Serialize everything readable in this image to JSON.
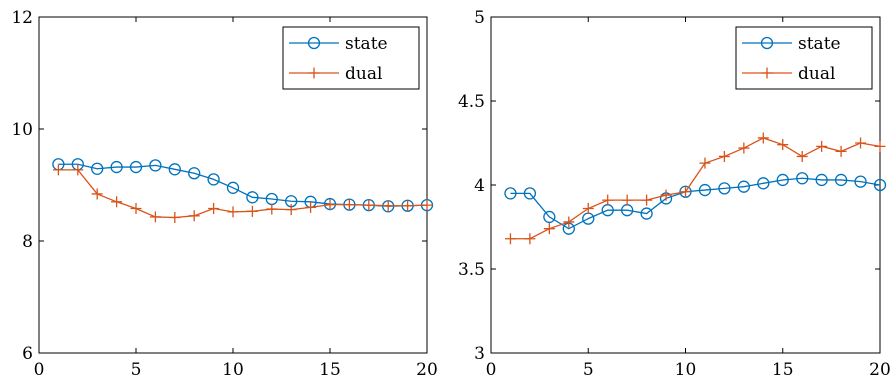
{
  "chart_data": [
    {
      "type": "line",
      "x": [
        1,
        2,
        3,
        4,
        5,
        6,
        7,
        8,
        9,
        10,
        11,
        12,
        13,
        14,
        15,
        16,
        17,
        18,
        19,
        20
      ],
      "xlim": [
        0,
        20
      ],
      "ylim": [
        6,
        12
      ],
      "xticks": [
        "0",
        "5",
        "10",
        "15",
        "20"
      ],
      "yticks": [
        "6",
        "8",
        "10",
        "12"
      ],
      "legend": "top-right",
      "grid": false,
      "series": [
        {
          "name": "state",
          "marker": "circle",
          "color": "#0072bd",
          "values": [
            9.37,
            9.37,
            9.29,
            9.32,
            9.32,
            9.35,
            9.28,
            9.21,
            9.1,
            8.95,
            8.78,
            8.75,
            8.71,
            8.7,
            8.66,
            8.65,
            8.64,
            8.62,
            8.63,
            8.64
          ]
        },
        {
          "name": "dual",
          "marker": "plus",
          "color": "#d95319",
          "values": [
            9.27,
            9.27,
            8.84,
            8.7,
            8.58,
            8.43,
            8.42,
            8.45,
            8.58,
            8.52,
            8.53,
            8.57,
            8.56,
            8.6,
            8.65,
            8.65,
            8.64,
            8.63,
            8.63,
            8.64
          ]
        }
      ]
    },
    {
      "type": "line",
      "x": [
        1,
        2,
        3,
        4,
        5,
        6,
        7,
        8,
        9,
        10,
        11,
        12,
        13,
        14,
        15,
        16,
        17,
        18,
        19,
        20
      ],
      "xlim": [
        0,
        20
      ],
      "ylim": [
        3,
        5
      ],
      "xticks": [
        "0",
        "5",
        "10",
        "15",
        "20"
      ],
      "yticks": [
        "3",
        "3.5",
        "4",
        "4.5",
        "5"
      ],
      "legend": "top-right",
      "grid": false,
      "series": [
        {
          "name": "state",
          "marker": "circle",
          "color": "#0072bd",
          "values": [
            3.95,
            3.95,
            3.81,
            3.74,
            3.8,
            3.85,
            3.85,
            3.83,
            3.92,
            3.96,
            3.97,
            3.98,
            3.99,
            4.01,
            4.03,
            4.04,
            4.03,
            4.03,
            4.02,
            4.0
          ]
        },
        {
          "name": "dual",
          "marker": "plus",
          "color": "#d95319",
          "values": [
            3.68,
            3.68,
            3.74,
            3.78,
            3.86,
            3.91,
            3.91,
            3.91,
            3.94,
            3.96,
            4.13,
            4.17,
            4.22,
            4.28,
            4.24,
            4.17,
            4.23,
            4.2,
            4.25,
            4.23
          ]
        }
      ]
    }
  ]
}
